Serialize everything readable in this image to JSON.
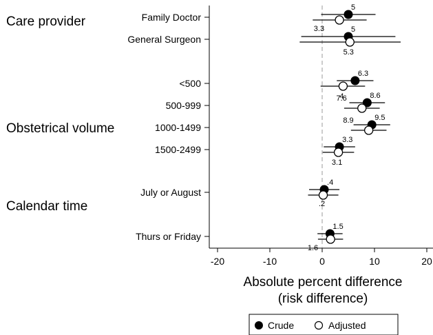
{
  "chart_data": {
    "type": "forest",
    "xlabel_line1": "Absolute percent difference",
    "xlabel_line2": "(risk difference)",
    "xlim": [
      -20,
      20
    ],
    "xticks": [
      "-20",
      "-10",
      "0",
      "10",
      "20"
    ],
    "reference_line": 0,
    "groups": [
      {
        "label": "Care provider"
      },
      {
        "label": "Obstetrical volume"
      },
      {
        "label": "Calendar time"
      }
    ],
    "rows": [
      {
        "label": "Family Doctor",
        "crude": {
          "est": 5.0,
          "lo": -0.2,
          "hi": 10.2,
          "label": "5"
        },
        "adjusted": {
          "est": 3.3,
          "lo": -1.8,
          "hi": 8.5,
          "label": "3.3"
        }
      },
      {
        "label": "General Surgeon",
        "crude": {
          "est": 5.0,
          "lo": -4.0,
          "hi": 14.0,
          "label": "5"
        },
        "adjusted": {
          "est": 5.3,
          "lo": -4.3,
          "hi": 15.0,
          "label": "5.3"
        }
      },
      {
        "label": "<500",
        "crude": {
          "est": 6.3,
          "lo": 2.8,
          "hi": 9.8,
          "label": "6.3"
        },
        "adjusted": {
          "est": 4.0,
          "lo": -0.3,
          "hi": 8.2,
          "label": "4"
        }
      },
      {
        "label": "500-999",
        "crude": {
          "est": 8.6,
          "lo": 5.2,
          "hi": 12.0,
          "label": "8.6"
        },
        "adjusted": {
          "est": 7.6,
          "lo": 4.2,
          "hi": 11.0,
          "label": "7.6"
        }
      },
      {
        "label": "1000-1499",
        "crude": {
          "est": 9.5,
          "lo": 6.0,
          "hi": 13.0,
          "label": "9.5"
        },
        "adjusted": {
          "est": 8.9,
          "lo": 5.5,
          "hi": 12.3,
          "label": "8.9"
        }
      },
      {
        "label": "1500-2499",
        "crude": {
          "est": 3.3,
          "lo": 0.3,
          "hi": 6.3,
          "label": "3.3"
        },
        "adjusted": {
          "est": 3.1,
          "lo": 0.1,
          "hi": 6.1,
          "label": "3.1"
        }
      },
      {
        "label": "July or August",
        "crude": {
          "est": 0.4,
          "lo": -2.5,
          "hi": 3.3,
          "label": ".4"
        },
        "adjusted": {
          "est": 0.2,
          "lo": -2.7,
          "hi": 3.1,
          "label": ".2"
        }
      },
      {
        "label": "Thurs or Friday",
        "crude": {
          "est": 1.5,
          "lo": -0.9,
          "hi": 3.9,
          "label": "1.5"
        },
        "adjusted": {
          "est": 1.6,
          "lo": -0.8,
          "hi": 4.0,
          "label": "1.6"
        }
      }
    ],
    "legend": {
      "placement": "bottom",
      "items": [
        {
          "name": "Crude",
          "marker": "filled-circle"
        },
        {
          "name": "Adjusted",
          "marker": "open-circle"
        }
      ]
    }
  }
}
